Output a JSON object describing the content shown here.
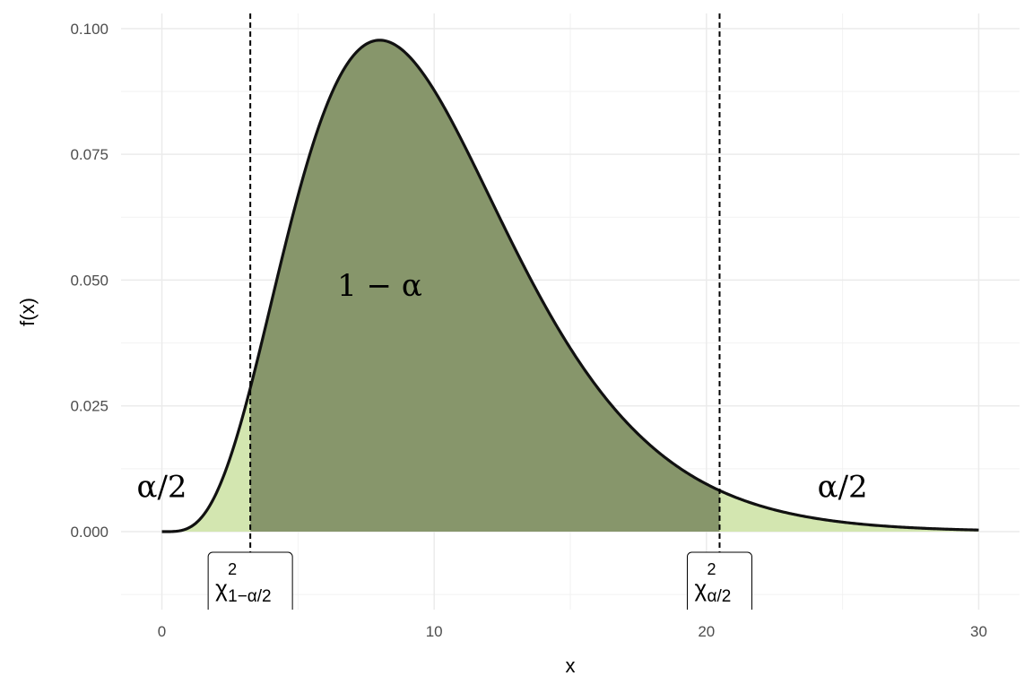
{
  "chart_data": {
    "type": "area",
    "distribution": "chi-square",
    "df": 10,
    "title": "",
    "xlabel": "x",
    "ylabel": "f(x)",
    "xlim": [
      -1.5,
      31.5
    ],
    "ylim": [
      -0.0155,
      0.103
    ],
    "grid": true,
    "x_ticks": [
      0,
      10,
      20,
      30
    ],
    "x_tick_labels": [
      "0",
      "10",
      "20",
      "30"
    ],
    "y_ticks": [
      0,
      0.025,
      0.05,
      0.075,
      0.1
    ],
    "y_tick_labels": [
      "0.000",
      "0.025",
      "0.050",
      "0.075",
      "0.100"
    ],
    "x_range_curve": [
      0,
      30
    ],
    "critical_values": [
      {
        "x": 3.247,
        "label_main": "χ",
        "label_sup": "2",
        "label_sub": "1−α/2"
      },
      {
        "x": 20.483,
        "label_main": "χ",
        "label_sup": "2",
        "label_sub": "α/2"
      }
    ],
    "regions": [
      {
        "from": 0,
        "to": 3.247,
        "color": "#d3e6b0"
      },
      {
        "from": 3.247,
        "to": 20.483,
        "color": "#87966b"
      },
      {
        "from": 20.483,
        "to": 30,
        "color": "#d3e6b0"
      }
    ],
    "annotations": [
      {
        "text": "α/2",
        "x": 0,
        "y": 0.009
      },
      {
        "text": "1 − α",
        "x": 8,
        "y": 0.049
      },
      {
        "text": "α/2",
        "x": 25,
        "y": 0.009
      }
    ]
  }
}
